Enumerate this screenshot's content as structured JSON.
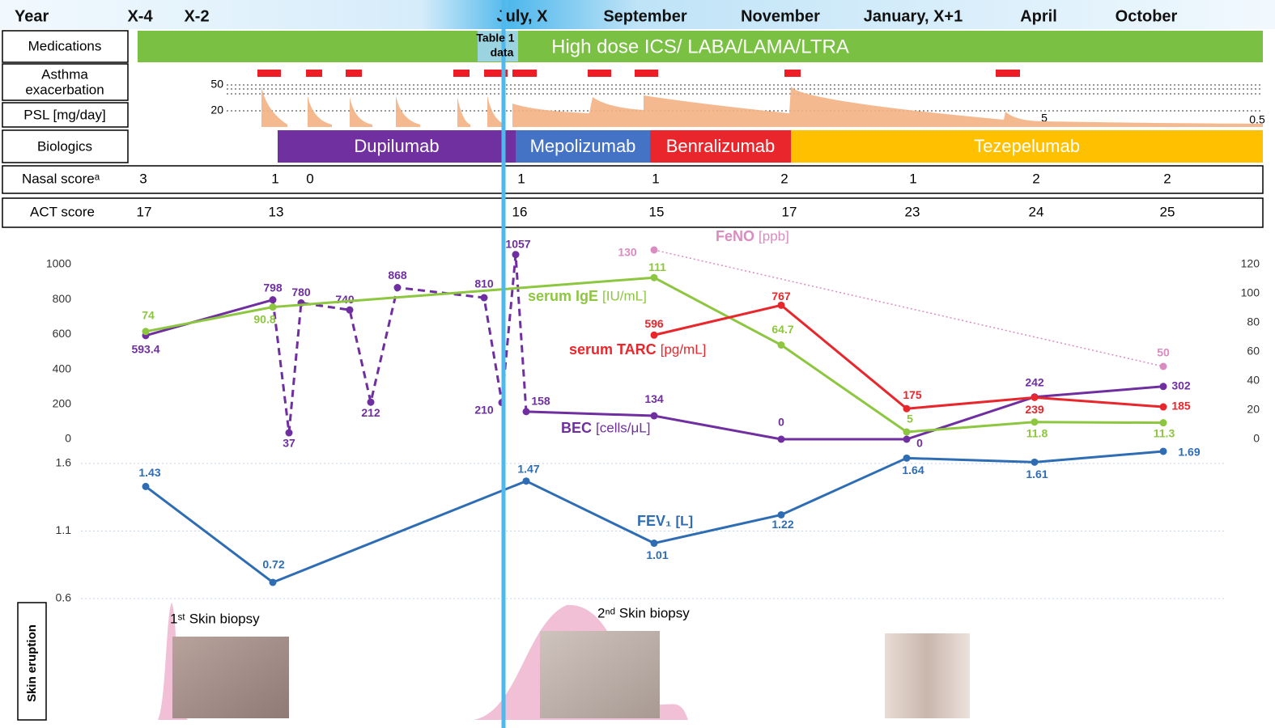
{
  "timeline": {
    "year_label": "Year",
    "years": [
      "X-4",
      "X-2",
      "July, X",
      "September",
      "November",
      "January, X+1",
      "April",
      "October"
    ],
    "medications": {
      "label": "Medications",
      "text": "High dose ICS/ LABA/LAMA/LTRA"
    },
    "table_note": [
      "Table 1",
      "data"
    ],
    "exacerbation_label": [
      "Asthma",
      "exacerbation"
    ],
    "psl": {
      "label": "PSL [mg/day]",
      "levels": [
        50,
        20
      ],
      "doses": [
        5,
        0.5
      ]
    },
    "biologics": {
      "label": "Biologics",
      "drugs": [
        {
          "name": "Dupilumab",
          "color": "#7030a0"
        },
        {
          "name": "Mepolizumab",
          "color": "#4472c4"
        },
        {
          "name": "Benralizumab",
          "color": "#e8262b"
        },
        {
          "name": "Tezepelumab",
          "color": "#ffc000"
        }
      ]
    },
    "nasal": {
      "label": "Nasal scoreᵃ",
      "values": [
        3,
        1,
        0,
        1,
        1,
        2,
        1,
        2,
        2
      ]
    },
    "act": {
      "label": "ACT score",
      "values": [
        17,
        13,
        16,
        15,
        17,
        23,
        24,
        25
      ]
    }
  },
  "chart_data": [
    {
      "type": "line",
      "categories": [
        null,
        null,
        null,
        null,
        null,
        null,
        null,
        null,
        null,
        null,
        null,
        null,
        null,
        null,
        null,
        null
      ],
      "ylim": [
        0,
        1000
      ],
      "yticks": [
        0,
        200,
        400,
        600,
        800,
        1000
      ],
      "y2lim": [
        0,
        120
      ],
      "y2ticks": [
        0,
        20,
        40,
        60,
        80,
        100,
        120
      ],
      "connect_nulls": true,
      "grid": false,
      "series": [
        {
          "name": "BEC",
          "unit": "[cells/μL]",
          "color": "#6f2fa0",
          "dashed_segment": [
            1,
            10
          ],
          "values": [
            593.4,
            798,
            37,
            780,
            740,
            212,
            868,
            810,
            210,
            1057,
            158,
            134,
            0,
            0,
            242,
            302
          ]
        },
        {
          "name": "serum IgE",
          "unit": "[IU/mL]",
          "color": "#8dc63f",
          "axis": "y2",
          "values": [
            74,
            90.8,
            null,
            null,
            null,
            null,
            null,
            null,
            null,
            null,
            null,
            111,
            64.7,
            5,
            11.8,
            11.3
          ]
        },
        {
          "name": "serum TARC",
          "unit": "[pg/mL]",
          "color": "#e8262b",
          "values": [
            null,
            null,
            null,
            null,
            null,
            null,
            null,
            null,
            null,
            null,
            null,
            596,
            767,
            175,
            239,
            185
          ]
        },
        {
          "name": "FeNO",
          "unit": "[ppb]",
          "color": "#d98cc0",
          "axis": "y2",
          "line_style": "dotted",
          "values": [
            null,
            null,
            null,
            null,
            null,
            null,
            null,
            null,
            null,
            null,
            null,
            130,
            null,
            null,
            null,
            50
          ]
        }
      ]
    },
    {
      "type": "line",
      "categories": [
        null,
        null,
        null,
        null,
        null,
        null,
        null,
        null,
        null,
        null,
        null,
        null,
        null,
        null,
        null,
        null
      ],
      "ylim": [
        0.6,
        1.6
      ],
      "yticks": [
        0.6,
        1.1,
        1.6
      ],
      "connect_nulls": true,
      "grid": true,
      "series": [
        {
          "name": "FEV₁",
          "unit": "[L]",
          "color": "#2e6db4",
          "values": [
            1.43,
            0.72,
            null,
            null,
            null,
            null,
            null,
            null,
            null,
            null,
            1.47,
            1.01,
            1.22,
            1.64,
            1.61,
            1.69
          ]
        }
      ]
    }
  ],
  "skin": {
    "label": "Skin eruption",
    "biopsies": [
      "1ˢᵗ Skin biopsy",
      "2ⁿᵈ Skin biopsy"
    ]
  }
}
